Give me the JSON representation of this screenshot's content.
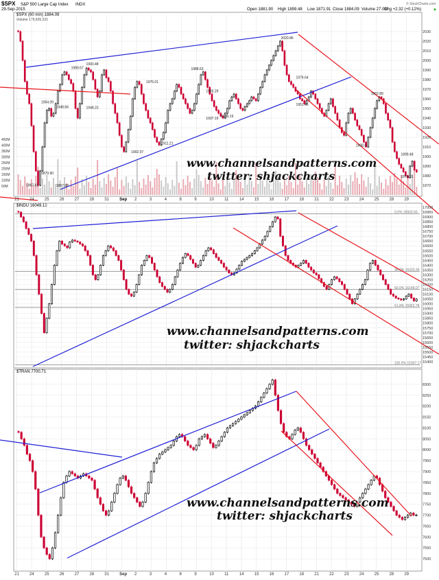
{
  "header": {
    "symbol": "$SPX",
    "name": "S&P 500 Large Cap Index",
    "exchange": "INDX",
    "date": "29-Sep-2015",
    "open": "Open 1881.90",
    "high": "High 1899.48",
    "low": "Low 1871.91",
    "close": "Close 1884.09",
    "volume": "Volume 27.0M",
    "chg": "Chg +2.32 (+0.12%)",
    "arrow": "▲",
    "brand": "© StockCharts.com"
  },
  "watermark": {
    "line1": "www.channelsandpatterns.com",
    "line2": "twitter: shjackcharts"
  },
  "colors": {
    "up": "#000000",
    "down": "#cc0033",
    "channel_blue": "#1f1fd6",
    "channel_red": "#e8141b",
    "volume_bar": "#e8a8b0",
    "grid": "#e0e0e0"
  },
  "x_labels": [
    "21",
    "24",
    "25",
    "26",
    "27",
    "28",
    "31",
    "Sep",
    "2",
    "3",
    "4",
    "8",
    "9",
    "10",
    "11",
    "14",
    "15",
    "16",
    "17",
    "18",
    "21",
    "22",
    "23",
    "24",
    "25",
    "28",
    "29"
  ],
  "chart_data": [
    {
      "type": "candlestick",
      "legend": "$SPX (60 min) 1884.09",
      "legend2": "Volume 179,926,236",
      "ylim": [
        1860,
        2040
      ],
      "y_ticks": [
        1870,
        1880,
        1890,
        1900,
        1910,
        1920,
        1930,
        1940,
        1950,
        1960,
        1970,
        1980,
        1990,
        2000,
        2010,
        2020,
        2030
      ],
      "volume_ticks": [
        "450M",
        "400M",
        "350M",
        "300M",
        "250M",
        "200M",
        "150M",
        "100M",
        "50M"
      ],
      "annotations": [
        {
          "text": "1867.61",
          "x": 1,
          "y": 1867.61
        },
        {
          "text": "1954.09",
          "x": 2,
          "y": 1954.09
        },
        {
          "text": "1948.84",
          "x": 3,
          "y": 1948.84
        },
        {
          "text": "1879.90",
          "x": 2,
          "y": 1879.9
        },
        {
          "text": "1867.08",
          "x": 3,
          "y": 1867.08
        },
        {
          "text": "1989.67",
          "x": 4,
          "y": 1989.67
        },
        {
          "text": "1993.48",
          "x": 5,
          "y": 1993.48
        },
        {
          "text": "1948.23",
          "x": 5,
          "y": 1948.23
        },
        {
          "text": "1902.07",
          "x": 8,
          "y": 1902.07
        },
        {
          "text": "1975.01",
          "x": 9,
          "y": 1975.01
        },
        {
          "text": "1911.21",
          "x": 10,
          "y": 1911.21
        },
        {
          "text": "1988.63",
          "x": 12,
          "y": 1988.63
        },
        {
          "text": "1937.19",
          "x": 13,
          "y": 1937.19
        },
        {
          "text": "1965.29",
          "x": 13,
          "y": 1965.29
        },
        {
          "text": "1939.19",
          "x": 14,
          "y": 1939.19
        },
        {
          "text": "2020.86",
          "x": 18,
          "y": 2020.86
        },
        {
          "text": "1979.64",
          "x": 19,
          "y": 1979.64
        },
        {
          "text": "1951.46",
          "x": 19,
          "y": 1951.46
        },
        {
          "text": "1962.89",
          "x": 24,
          "y": 1962.89
        },
        {
          "text": "1908.9",
          "x": 23,
          "y": 1908.9
        },
        {
          "text": "1899.48",
          "x": 26,
          "y": 1899.48
        },
        {
          "text": "1876.31",
          "x": 26,
          "y": 1876.31
        }
      ],
      "closes": [
        2030,
        2020,
        2000,
        1978,
        1965,
        1955,
        1932,
        1905,
        1885,
        1870,
        1885,
        1910,
        1935,
        1948,
        1950,
        1942,
        1945,
        1955,
        1968,
        1975,
        1985,
        1988,
        1985,
        1980,
        1976,
        1968,
        1950,
        1940,
        1955,
        1972,
        1985,
        1992,
        1990,
        1988,
        1980,
        1970,
        1962,
        1968,
        1985,
        1990,
        1982,
        1978,
        1968,
        1955,
        1945,
        1935,
        1922,
        1910,
        1905,
        1915,
        1928,
        1942,
        1960,
        1972,
        1978,
        1975,
        1965,
        1955,
        1948,
        1940,
        1935,
        1928,
        1920,
        1915,
        1912,
        1918,
        1925,
        1935,
        1948,
        1955,
        1960,
        1968,
        1975,
        1972,
        1965,
        1960,
        1955,
        1950,
        1945,
        1948,
        1955,
        1965,
        1975,
        1985,
        1988,
        1980,
        1972,
        1965,
        1958,
        1952,
        1948,
        1945,
        1942,
        1940,
        1945,
        1950,
        1958,
        1962,
        1965,
        1960,
        1955,
        1950,
        1948,
        1952,
        1955,
        1958,
        1962,
        1960,
        1958,
        1965,
        1972,
        1978,
        1985,
        1990,
        1995,
        2000,
        2005,
        2010,
        2015,
        2020,
        2010,
        1995,
        1985,
        1978,
        1975,
        1972,
        1968,
        1965,
        1960,
        1958,
        1955,
        1958,
        1962,
        1968,
        1965,
        1960,
        1955,
        1950,
        1945,
        1942,
        1948,
        1955,
        1960,
        1952,
        1945,
        1938,
        1930,
        1925,
        1922,
        1935,
        1945,
        1950,
        1945,
        1938,
        1932,
        1928,
        1922,
        1915,
        1910,
        1920,
        1930,
        1940,
        1950,
        1958,
        1962,
        1960,
        1955,
        1945,
        1938,
        1930,
        1915,
        1905,
        1898,
        1892,
        1888,
        1884,
        1880,
        1878,
        1890,
        1895,
        1886,
        1884
      ]
    },
    {
      "type": "candlestick",
      "legend": "$INDU 16049.13",
      "ylim": [
        15350,
        17000
      ],
      "y_ticks": [
        15400,
        15450,
        15500,
        15550,
        15600,
        15650,
        15700,
        15750,
        15800,
        15850,
        15900,
        15950,
        16000,
        16050,
        16100,
        16150,
        16200,
        16250,
        16300,
        16350,
        16400,
        16450,
        16500,
        16550,
        16600,
        16650,
        16700,
        16750,
        16800,
        16850,
        16900,
        16950,
        17000
      ],
      "fib_levels": [
        {
          "label": "0.0% 16933.56",
          "value": 16933.56
        },
        {
          "label": "38.2% 16333.36",
          "value": 16333.36
        },
        {
          "label": "50.0% 16148.07",
          "value": 16148.07
        },
        {
          "label": "61.8% 15962.78",
          "value": 15962.78
        },
        {
          "label": "100.0% 15367.17",
          "value": 15367.17
        }
      ],
      "closes": [
        16950,
        16900,
        16850,
        16780,
        16720,
        16650,
        16500,
        16300,
        16100,
        15900,
        15700,
        15850,
        16000,
        16200,
        16400,
        16550,
        16650,
        16620,
        16600,
        16580,
        16640,
        16660,
        16650,
        16640,
        16620,
        16600,
        16550,
        16500,
        16400,
        16300,
        16250,
        16300,
        16400,
        16500,
        16550,
        16600,
        16580,
        16550,
        16500,
        16450,
        16350,
        16250,
        16150,
        16100,
        16080,
        16120,
        16200,
        16300,
        16400,
        16450,
        16500,
        16480,
        16420,
        16350,
        16280,
        16220,
        16180,
        16150,
        16120,
        16150,
        16200,
        16280,
        16350,
        16420,
        16480,
        16520,
        16500,
        16460,
        16420,
        16380,
        16400,
        16450,
        16500,
        16550,
        16580,
        16560,
        16520,
        16480,
        16450,
        16420,
        16380,
        16350,
        16320,
        16300,
        16320,
        16360,
        16400,
        16440,
        16460,
        16480,
        16500,
        16520,
        16550,
        16580,
        16620,
        16660,
        16700,
        16750,
        16800,
        16850,
        16900,
        16880,
        16700,
        16600,
        16500,
        16450,
        16420,
        16400,
        16380,
        16400,
        16420,
        16450,
        16420,
        16380,
        16350,
        16320,
        16300,
        16260,
        16220,
        16180,
        16150,
        16200,
        16250,
        16280,
        16260,
        16230,
        16200,
        16150,
        16100,
        16050,
        16000,
        16050,
        16100,
        16150,
        16200,
        16250,
        16350,
        16420,
        16450,
        16400,
        16350,
        16300,
        16250,
        16200,
        16150,
        16100,
        16080,
        16060,
        16050,
        16040,
        16050,
        16080,
        16100,
        16060,
        16030,
        16049
      ]
    },
    {
      "type": "candlestick",
      "legend": "$TRAN 7700.71",
      "ylim": [
        7450,
        8350
      ],
      "y_ticks": [
        7500,
        7550,
        7600,
        7650,
        7700,
        7750,
        7800,
        7850,
        7900,
        7950,
        8000,
        8050,
        8100,
        8150,
        8200,
        8250,
        8300
      ],
      "closes": [
        8080,
        8050,
        8020,
        7980,
        7950,
        7900,
        7820,
        7700,
        7600,
        7550,
        7520,
        7500,
        7550,
        7620,
        7700,
        7780,
        7850,
        7880,
        7900,
        7890,
        7880,
        7870,
        7880,
        7890,
        7880,
        7870,
        7860,
        7820,
        7780,
        7750,
        7720,
        7700,
        7720,
        7760,
        7800,
        7840,
        7870,
        7880,
        7860,
        7830,
        7800,
        7780,
        7760,
        7740,
        7760,
        7800,
        7850,
        7900,
        7940,
        7960,
        7980,
        7990,
        8000,
        8010,
        8020,
        8040,
        8060,
        8070,
        8060,
        8040,
        8020,
        8010,
        8000,
        8020,
        8050,
        8060,
        8070,
        8050,
        8030,
        8010,
        8020,
        8040,
        8060,
        8080,
        8100,
        8110,
        8120,
        8130,
        8140,
        8150,
        8160,
        8170,
        8180,
        8190,
        8200,
        8220,
        8240,
        8260,
        8280,
        8300,
        8320,
        8250,
        8180,
        8120,
        8080,
        8060,
        8050,
        8070,
        8090,
        8100,
        8080,
        8050,
        8020,
        8000,
        7980,
        7960,
        7940,
        7920,
        7900,
        7880,
        7860,
        7840,
        7820,
        7800,
        7790,
        7780,
        7770,
        7760,
        7750,
        7740,
        7760,
        7780,
        7800,
        7820,
        7840,
        7860,
        7880,
        7870,
        7840,
        7810,
        7780,
        7760,
        7740,
        7720,
        7700,
        7690,
        7680,
        7690,
        7700,
        7710,
        7700,
        7701
      ]
    }
  ]
}
